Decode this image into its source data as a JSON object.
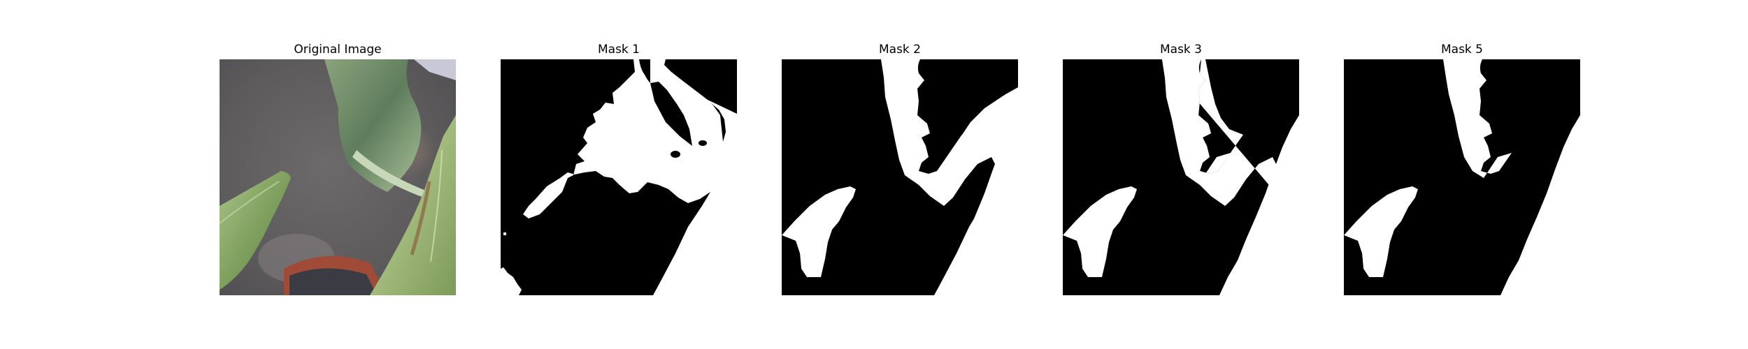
{
  "figure": {
    "panels": [
      {
        "title": "Original Image",
        "kind": "photo"
      },
      {
        "title": "Mask 1",
        "kind": "mask",
        "foreground": "#ffffff",
        "background": "#000000"
      },
      {
        "title": "Mask 2",
        "kind": "mask",
        "foreground": "#ffffff",
        "background": "#000000"
      },
      {
        "title": "Mask 3",
        "kind": "mask",
        "foreground": "#ffffff",
        "background": "#000000"
      },
      {
        "title": "Mask 5",
        "kind": "mask",
        "foreground": "#ffffff",
        "background": "#000000"
      }
    ]
  }
}
